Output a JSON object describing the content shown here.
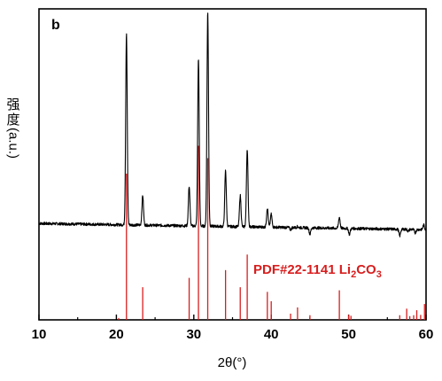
{
  "chart_data": {
    "type": "line",
    "panel_label": "b",
    "xlabel": "2θ(°)",
    "ylabel_cjk": "强度",
    "ylabel_unit": "(a.u.)",
    "xlim": [
      10,
      60
    ],
    "x_ticks": [
      10,
      20,
      30,
      40,
      50,
      60
    ],
    "ylim": [
      0,
      100
    ],
    "colors": {
      "measured": "#000000",
      "reference": "#d81e1e",
      "frame": "#000000"
    },
    "series": [
      {
        "role": "measured",
        "baseline": 31,
        "baseline_end": 29,
        "peaks": [
          {
            "x": 21.3,
            "y": 92
          },
          {
            "x": 23.4,
            "y": 40
          },
          {
            "x": 29.4,
            "y": 43
          },
          {
            "x": 30.6,
            "y": 84
          },
          {
            "x": 31.8,
            "y": 99
          },
          {
            "x": 34.1,
            "y": 48
          },
          {
            "x": 36.0,
            "y": 40
          },
          {
            "x": 36.9,
            "y": 55
          },
          {
            "x": 39.5,
            "y": 36
          },
          {
            "x": 40.0,
            "y": 34
          },
          {
            "x": 42.5,
            "y": 29
          },
          {
            "x": 43.4,
            "y": 30
          },
          {
            "x": 45.0,
            "y": 27.5
          },
          {
            "x": 48.8,
            "y": 33
          },
          {
            "x": 50.1,
            "y": 27.5
          },
          {
            "x": 56.6,
            "y": 27
          },
          {
            "x": 57.7,
            "y": 28.5
          },
          {
            "x": 58.6,
            "y": 28
          },
          {
            "x": 59.7,
            "y": 30.5
          }
        ]
      },
      {
        "role": "reference",
        "name": "PDF#22-1141 Li2CO3",
        "label_main": "PDF#22-1141 Li",
        "label_sub1": "2",
        "label_mid": "CO",
        "label_sub2": "3",
        "sticks": [
          {
            "x": 20.3,
            "y": 0.6
          },
          {
            "x": 21.3,
            "y": 47
          },
          {
            "x": 23.4,
            "y": 10.5
          },
          {
            "x": 29.4,
            "y": 13.5
          },
          {
            "x": 30.6,
            "y": 56
          },
          {
            "x": 31.8,
            "y": 52
          },
          {
            "x": 34.1,
            "y": 16
          },
          {
            "x": 36.0,
            "y": 10.5
          },
          {
            "x": 36.9,
            "y": 21
          },
          {
            "x": 39.5,
            "y": 9
          },
          {
            "x": 40.0,
            "y": 6
          },
          {
            "x": 42.5,
            "y": 2
          },
          {
            "x": 43.4,
            "y": 4
          },
          {
            "x": 45.0,
            "y": 1.5
          },
          {
            "x": 48.8,
            "y": 9.5
          },
          {
            "x": 50.0,
            "y": 1.6
          },
          {
            "x": 50.3,
            "y": 1.3
          },
          {
            "x": 56.6,
            "y": 1.5
          },
          {
            "x": 57.5,
            "y": 3.6
          },
          {
            "x": 57.9,
            "y": 1.2
          },
          {
            "x": 58.4,
            "y": 1.5
          },
          {
            "x": 58.8,
            "y": 3.1
          },
          {
            "x": 59.3,
            "y": 1.6
          },
          {
            "x": 59.8,
            "y": 5.1
          }
        ]
      }
    ]
  }
}
